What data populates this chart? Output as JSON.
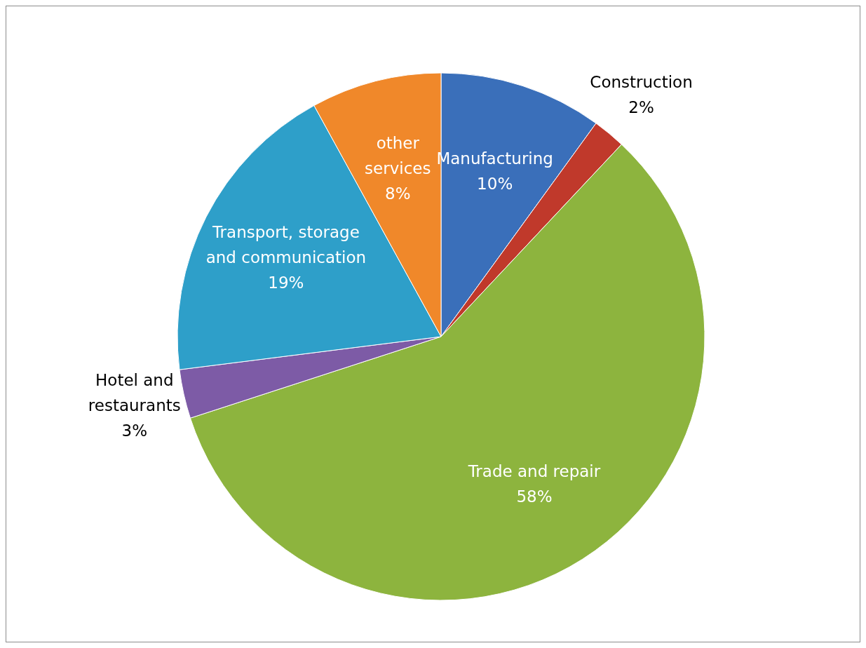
{
  "chart_data": {
    "type": "pie",
    "categories": [
      "Manufacturing",
      "Construction",
      "Trade and repair",
      "Hotel and restaurants",
      "Transport, storage and communication",
      "other services"
    ],
    "values": [
      10,
      2,
      58,
      3,
      19,
      8
    ],
    "colors": [
      "#3a6fba",
      "#c0392b",
      "#8db43e",
      "#7d5ba6",
      "#2e9fc9",
      "#f0882a"
    ],
    "value_labels": [
      "10%",
      "2%",
      "58%",
      "3%",
      "19%",
      "8%"
    ],
    "legend": false
  }
}
